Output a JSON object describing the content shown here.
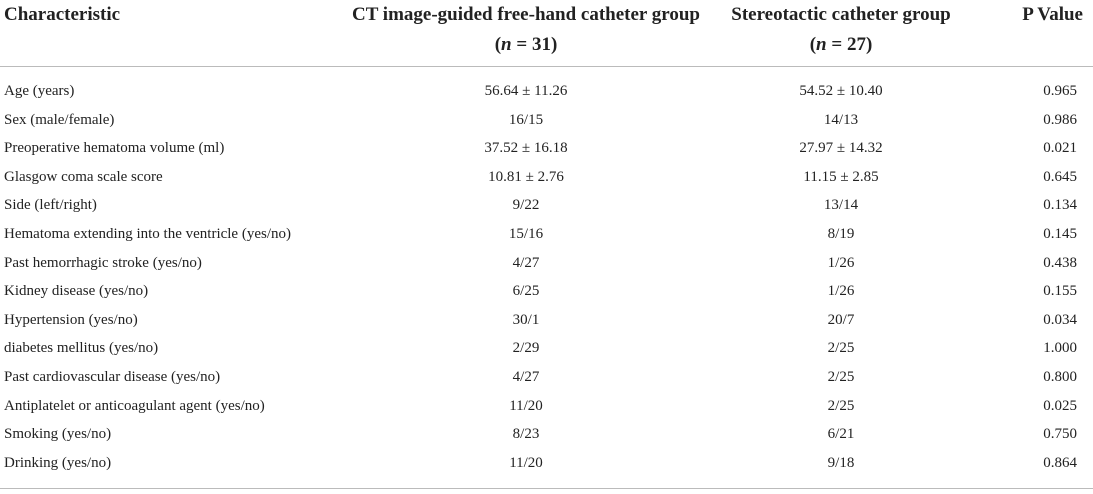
{
  "header": {
    "characteristic": "Characteristic",
    "group1_title": "CT image-guided free-hand catheter group",
    "group1_n_label": "(n = 31)",
    "group2_title": "Stereotactic catheter group",
    "group2_n_label": "(n = 27)",
    "pvalue": "P Value"
  },
  "rows": [
    {
      "label": "Age (years)",
      "group1": "56.64 ± 11.26",
      "group2": "54.52 ± 10.40",
      "p": "0.965"
    },
    {
      "label": "Sex (male/female)",
      "group1": "16/15",
      "group2": "14/13",
      "p": "0.986"
    },
    {
      "label": "Preoperative hematoma volume (ml)",
      "group1": "37.52 ± 16.18",
      "group2": "27.97 ± 14.32",
      "p": "0.021"
    },
    {
      "label": "Glasgow coma scale score",
      "group1": "10.81 ± 2.76",
      "group2": "11.15 ± 2.85",
      "p": "0.645"
    },
    {
      "label": "Side (left/right)",
      "group1": "9/22",
      "group2": "13/14",
      "p": "0.134"
    },
    {
      "label": "Hematoma extending into the ventricle (yes/no)",
      "group1": "15/16",
      "group2": "8/19",
      "p": "0.145"
    },
    {
      "label": "Past hemorrhagic stroke (yes/no)",
      "group1": "4/27",
      "group2": "1/26",
      "p": "0.438"
    },
    {
      "label": "Kidney disease (yes/no)",
      "group1": "6/25",
      "group2": "1/26",
      "p": "0.155"
    },
    {
      "label": "Hypertension (yes/no)",
      "group1": "30/1",
      "group2": "20/7",
      "p": "0.034"
    },
    {
      "label": "diabetes mellitus (yes/no)",
      "group1": "2/29",
      "group2": "2/25",
      "p": "1.000"
    },
    {
      "label": "Past cardiovascular disease (yes/no)",
      "group1": "4/27",
      "group2": "2/25",
      "p": "0.800"
    },
    {
      "label": "Antiplatelet or anticoagulant agent (yes/no)",
      "group1": "11/20",
      "group2": "2/25",
      "p": "0.025"
    },
    {
      "label": "Smoking (yes/no)",
      "group1": "8/23",
      "group2": "6/21",
      "p": "0.750"
    },
    {
      "label": "Drinking (yes/no)",
      "group1": "11/20",
      "group2": "9/18",
      "p": "0.864"
    }
  ]
}
